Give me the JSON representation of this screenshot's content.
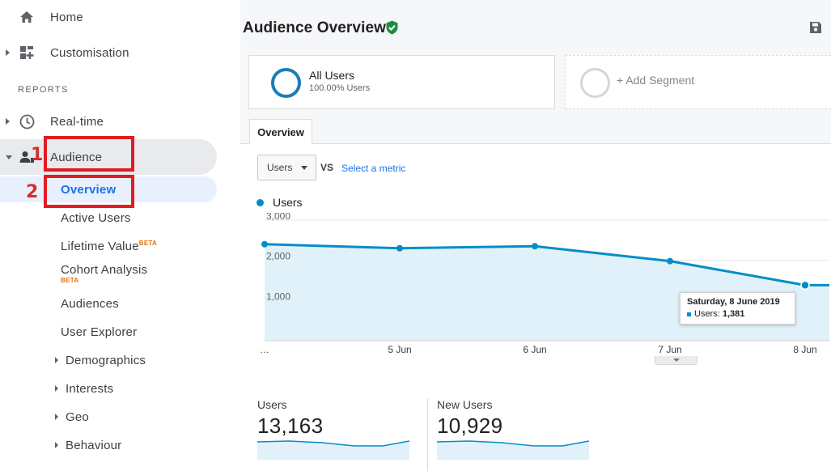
{
  "sidebar": {
    "home": "Home",
    "customisation": "Customisation",
    "reports_heading": "REPORTS",
    "realtime": "Real-time",
    "audience": "Audience",
    "overview": "Overview",
    "items": [
      {
        "label": "Active Users"
      },
      {
        "label": "Lifetime Value",
        "badge": "BETA"
      },
      {
        "label": "Cohort Analysis",
        "badge": "BETA"
      },
      {
        "label": "Audiences"
      },
      {
        "label": "User Explorer"
      },
      {
        "label": "Demographics"
      },
      {
        "label": "Interests"
      },
      {
        "label": "Geo"
      },
      {
        "label": "Behaviour"
      }
    ],
    "annotations": {
      "step1": "1",
      "step2": "2"
    }
  },
  "header": {
    "title": "Audience Overview"
  },
  "segments": {
    "all_users": {
      "name": "All Users",
      "pct": "100.00% Users"
    },
    "add_segment": "+ Add Segment"
  },
  "tabs": {
    "overview": "Overview"
  },
  "controls": {
    "metric": "Users",
    "vs": "VS",
    "select_metric": "Select a metric"
  },
  "chart_data": {
    "type": "area",
    "series": [
      {
        "name": "Users",
        "values": [
          2400,
          2300,
          2350,
          1980,
          1381,
          1381
        ]
      }
    ],
    "x": [
      "…",
      "5 Jun",
      "6 Jun",
      "7 Jun",
      "8 Jun",
      ""
    ],
    "yticks": [
      "3,000",
      "2,000",
      "1,000"
    ],
    "ylim": [
      0,
      3000
    ],
    "color": "#058dc7",
    "fill": "#e1f1f9"
  },
  "tooltip": {
    "date": "Saturday, 8 June 2019",
    "label": "Users:",
    "value": "1,381"
  },
  "stats": [
    {
      "label": "Users",
      "value": "13,163"
    },
    {
      "label": "New Users",
      "value": "10,929"
    }
  ],
  "colors": {
    "accent": "#058dc7",
    "annotation_red": "#e11b22",
    "verified_green": "#1e8e3e"
  }
}
